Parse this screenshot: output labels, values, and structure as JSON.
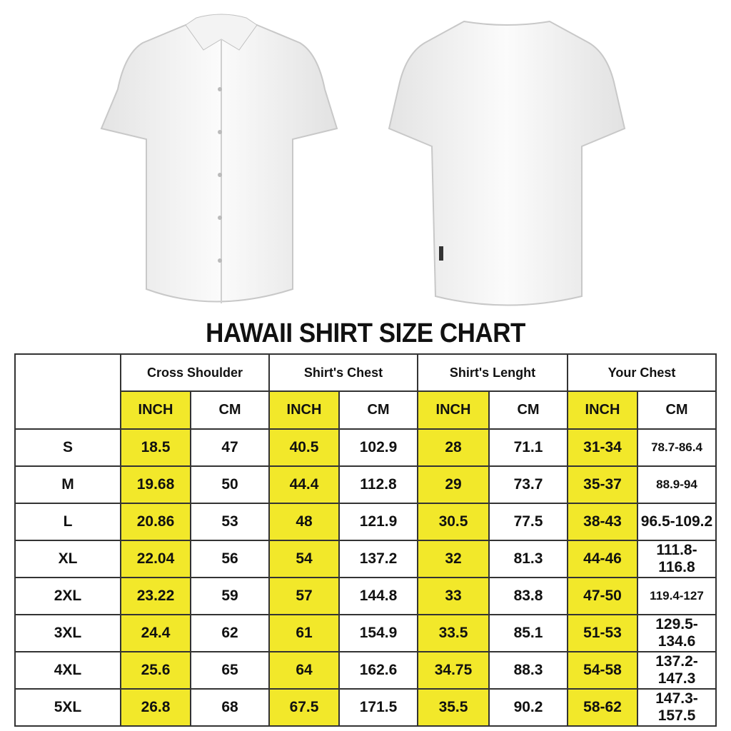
{
  "title": "HAWAII SHIRT SIZE CHART",
  "colors": {
    "highlight": "#f2e82a",
    "border": "#333333"
  },
  "groups": [
    "Cross Shoulder",
    "Shirt's Chest",
    "Shirt's Lenght",
    "Your Chest"
  ],
  "units": {
    "inch": "INCH",
    "cm": "CM"
  },
  "rows": [
    {
      "size": "S",
      "values": [
        "18.5",
        "47",
        "40.5",
        "102.9",
        "28",
        "71.1",
        "31-34",
        "78.7-86.4"
      ]
    },
    {
      "size": "M",
      "values": [
        "19.68",
        "50",
        "44.4",
        "112.8",
        "29",
        "73.7",
        "35-37",
        "88.9-94"
      ]
    },
    {
      "size": "L",
      "values": [
        "20.86",
        "53",
        "48",
        "121.9",
        "30.5",
        "77.5",
        "38-43",
        "96.5-109.2"
      ]
    },
    {
      "size": "XL",
      "values": [
        "22.04",
        "56",
        "54",
        "137.2",
        "32",
        "81.3",
        "44-46",
        "111.8-116.8"
      ]
    },
    {
      "size": "2XL",
      "values": [
        "23.22",
        "59",
        "57",
        "144.8",
        "33",
        "83.8",
        "47-50",
        "119.4-127"
      ]
    },
    {
      "size": "3XL",
      "values": [
        "24.4",
        "62",
        "61",
        "154.9",
        "33.5",
        "85.1",
        "51-53",
        "129.5-134.6"
      ]
    },
    {
      "size": "4XL",
      "values": [
        "25.6",
        "65",
        "64",
        "162.6",
        "34.75",
        "88.3",
        "54-58",
        "137.2-147.3"
      ]
    },
    {
      "size": "5XL",
      "values": [
        "26.8",
        "68",
        "67.5",
        "171.5",
        "35.5",
        "90.2",
        "58-62",
        "147.3-157.5"
      ]
    }
  ]
}
